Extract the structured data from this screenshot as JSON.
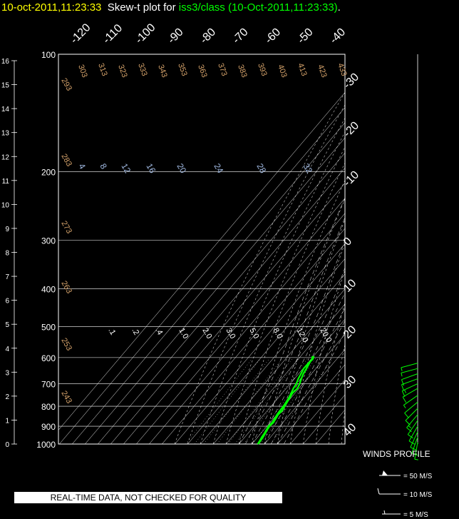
{
  "title": {
    "date": "10-oct-2011,11:23:33",
    "label": "Skew-t plot for",
    "station": "iss3/class (10-Oct-2011,11:23:33)",
    "end": "."
  },
  "disclaimer": "REAL-TIME DATA, NOT CHECKED FOR QUALITY",
  "colors": {
    "background": "#000000",
    "grid": "#ffffff",
    "dry_adiabat": "#d6a36b",
    "mixing_ratio": "#9fb8e0",
    "sounding": "#00ff00",
    "title_date": "#ffff00"
  },
  "chart_data": {
    "type": "skew-t",
    "pressure_levels": [
      "100",
      "200",
      "300",
      "400",
      "500",
      "600",
      "700",
      "800",
      "900",
      "1000"
    ],
    "height_km": [
      "16",
      "15",
      "14",
      "13",
      "12",
      "11",
      "10",
      "9",
      "8",
      "7",
      "6",
      "5",
      "4",
      "3",
      "2",
      "1",
      "0"
    ],
    "top_temp_labels": [
      "-120",
      "-110",
      "-100",
      "-90",
      "-80",
      "-70",
      "-60",
      "-50",
      "-40"
    ],
    "right_temp_labels": [
      "-30",
      "-20",
      "-10",
      "0",
      "10",
      "20",
      "30",
      "40"
    ],
    "theta_labels_top": [
      "303",
      "313",
      "323",
      "333",
      "343",
      "353",
      "363",
      "373",
      "383",
      "393",
      "403",
      "413",
      "423",
      "433"
    ],
    "theta_labels_left": [
      "293",
      "283",
      "273",
      "263",
      "253",
      "243"
    ],
    "mixing_ratio_upper": [
      "4",
      "8",
      "12",
      "16",
      "20",
      "24",
      "28",
      "32"
    ],
    "mixing_ratio_lower": [
      ".1",
      ".2",
      ".4",
      "1.0",
      "2.0",
      "3.0",
      "5.0",
      "8.0",
      "12.0",
      "20.0"
    ],
    "sounding": {
      "pressure_hpa": [
        1000,
        980,
        960,
        940,
        920,
        900,
        880,
        860,
        840,
        820,
        800,
        780,
        760,
        740,
        720,
        700,
        680,
        660,
        640,
        620,
        605,
        595
      ],
      "temp_c": [
        15.0,
        14.6,
        14.2,
        13.4,
        12.6,
        12.0,
        12.6,
        11.8,
        11.0,
        11.6,
        10.6,
        9.8,
        9.0,
        8.0,
        8.8,
        7.4,
        5.4,
        3.6,
        2.6,
        1.4,
        0.6,
        -0.8
      ],
      "dewpoint_c": [
        14.6,
        14.0,
        13.2,
        12.8,
        12.0,
        11.2,
        11.6,
        11.0,
        10.2,
        9.8,
        9.6,
        9.0,
        8.2,
        7.0,
        5.6,
        4.8,
        3.0,
        1.8,
        0.4,
        0.6,
        1.4,
        0.2
      ]
    },
    "winds": {
      "title": "WINDS PROFILE",
      "legend": [
        "= 50 M/S",
        "= 10 M/S",
        "= 5 M/S"
      ],
      "barbs": [
        {
          "p": 990,
          "dir": 190,
          "spd": 8
        },
        {
          "p": 960,
          "dir": 200,
          "spd": 10
        },
        {
          "p": 930,
          "dir": 205,
          "spd": 12
        },
        {
          "p": 900,
          "dir": 210,
          "spd": 10
        },
        {
          "p": 870,
          "dir": 215,
          "spd": 12
        },
        {
          "p": 840,
          "dir": 220,
          "spd": 15
        },
        {
          "p": 810,
          "dir": 225,
          "spd": 12
        },
        {
          "p": 780,
          "dir": 230,
          "spd": 10
        },
        {
          "p": 750,
          "dir": 235,
          "spd": 8
        },
        {
          "p": 720,
          "dir": 240,
          "spd": 12
        },
        {
          "p": 700,
          "dir": 245,
          "spd": 15
        },
        {
          "p": 680,
          "dir": 250,
          "spd": 12
        },
        {
          "p": 660,
          "dir": 250,
          "spd": 10
        },
        {
          "p": 640,
          "dir": 255,
          "spd": 8
        },
        {
          "p": 620,
          "dir": 255,
          "spd": 5
        }
      ]
    }
  }
}
